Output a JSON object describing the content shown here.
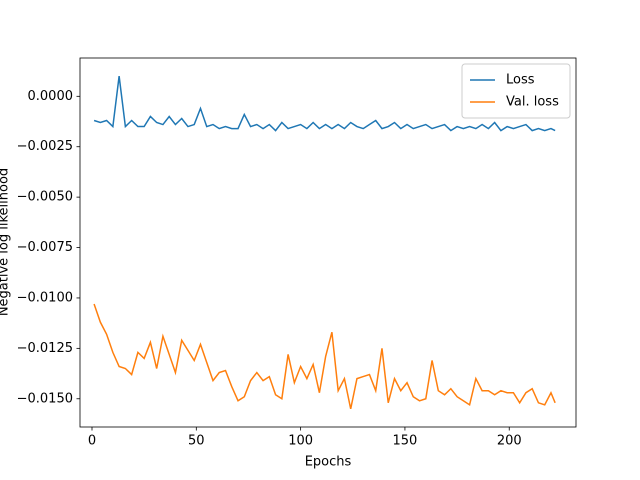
{
  "chart_data": {
    "type": "line",
    "ylabel": "Negative log likelihood",
    "xlabel": "Epochs",
    "x": [
      1,
      4,
      7,
      10,
      13,
      16,
      19,
      22,
      25,
      28,
      31,
      34,
      37,
      40,
      43,
      46,
      49,
      52,
      55,
      58,
      61,
      64,
      67,
      70,
      73,
      76,
      79,
      82,
      85,
      88,
      91,
      94,
      97,
      100,
      103,
      106,
      109,
      112,
      115,
      118,
      121,
      124,
      127,
      130,
      133,
      136,
      139,
      142,
      145,
      148,
      151,
      154,
      157,
      160,
      163,
      166,
      169,
      172,
      175,
      178,
      181,
      184,
      187,
      190,
      193,
      196,
      199,
      202,
      205,
      208,
      211,
      214,
      217,
      220,
      222
    ],
    "series": [
      {
        "name": "Loss",
        "color": "#1f77b4",
        "values": [
          -0.0012,
          -0.0013,
          -0.0012,
          -0.0015,
          0.001,
          -0.0015,
          -0.0012,
          -0.0015,
          -0.0015,
          -0.001,
          -0.0013,
          -0.0014,
          -0.001,
          -0.0014,
          -0.0011,
          -0.0015,
          -0.0014,
          -0.0006,
          -0.0015,
          -0.0014,
          -0.0016,
          -0.0015,
          -0.0016,
          -0.0016,
          -0.0009,
          -0.0015,
          -0.0014,
          -0.0016,
          -0.0014,
          -0.0017,
          -0.0013,
          -0.0016,
          -0.0015,
          -0.0014,
          -0.0016,
          -0.0013,
          -0.0016,
          -0.0014,
          -0.0016,
          -0.0014,
          -0.0016,
          -0.0013,
          -0.0015,
          -0.0016,
          -0.0014,
          -0.0012,
          -0.0016,
          -0.0015,
          -0.0013,
          -0.0016,
          -0.0014,
          -0.0016,
          -0.0015,
          -0.0014,
          -0.0016,
          -0.0015,
          -0.0014,
          -0.0017,
          -0.0015,
          -0.0016,
          -0.0015,
          -0.0016,
          -0.0014,
          -0.0016,
          -0.0013,
          -0.0017,
          -0.0015,
          -0.0016,
          -0.0015,
          -0.0014,
          -0.0017,
          -0.0016,
          -0.0017,
          -0.0016,
          -0.0017
        ]
      },
      {
        "name": "Val. loss",
        "color": "#ff7f0e",
        "values": [
          -0.0103,
          -0.0112,
          -0.0118,
          -0.0127,
          -0.0134,
          -0.0135,
          -0.0138,
          -0.0127,
          -0.013,
          -0.0122,
          -0.0135,
          -0.0119,
          -0.0128,
          -0.0137,
          -0.0121,
          -0.0126,
          -0.0131,
          -0.0123,
          -0.0132,
          -0.0141,
          -0.0137,
          -0.0136,
          -0.0144,
          -0.0151,
          -0.0149,
          -0.0141,
          -0.0137,
          -0.0141,
          -0.0139,
          -0.0148,
          -0.015,
          -0.0128,
          -0.0142,
          -0.0134,
          -0.014,
          -0.0133,
          -0.0147,
          -0.0129,
          -0.0117,
          -0.0146,
          -0.014,
          -0.0155,
          -0.014,
          -0.0139,
          -0.0138,
          -0.0146,
          -0.0125,
          -0.0152,
          -0.014,
          -0.0146,
          -0.0142,
          -0.0149,
          -0.0151,
          -0.015,
          -0.0131,
          -0.0146,
          -0.0148,
          -0.0145,
          -0.0149,
          -0.0151,
          -0.0153,
          -0.014,
          -0.0146,
          -0.0146,
          -0.0148,
          -0.0146,
          -0.0147,
          -0.0147,
          -0.0152,
          -0.0147,
          -0.0145,
          -0.0152,
          -0.0153,
          -0.0147,
          -0.0152
        ]
      }
    ],
    "xlim": [
      -5.75,
      232
    ],
    "xticks": [
      0,
      50,
      100,
      150,
      200
    ],
    "ylim": [
      -0.0164,
      0.0019
    ],
    "yticks": [
      {
        "value": 0,
        "label": "0.0000"
      },
      {
        "value": -0.0025,
        "label": "−0.0025"
      },
      {
        "value": -0.005,
        "label": "−0.0050"
      },
      {
        "value": -0.0075,
        "label": "−0.0075"
      },
      {
        "value": -0.01,
        "label": "−0.0100"
      },
      {
        "value": -0.0125,
        "label": "−0.0125"
      },
      {
        "value": -0.015,
        "label": "−0.0150"
      }
    ],
    "legend": "upper right"
  }
}
